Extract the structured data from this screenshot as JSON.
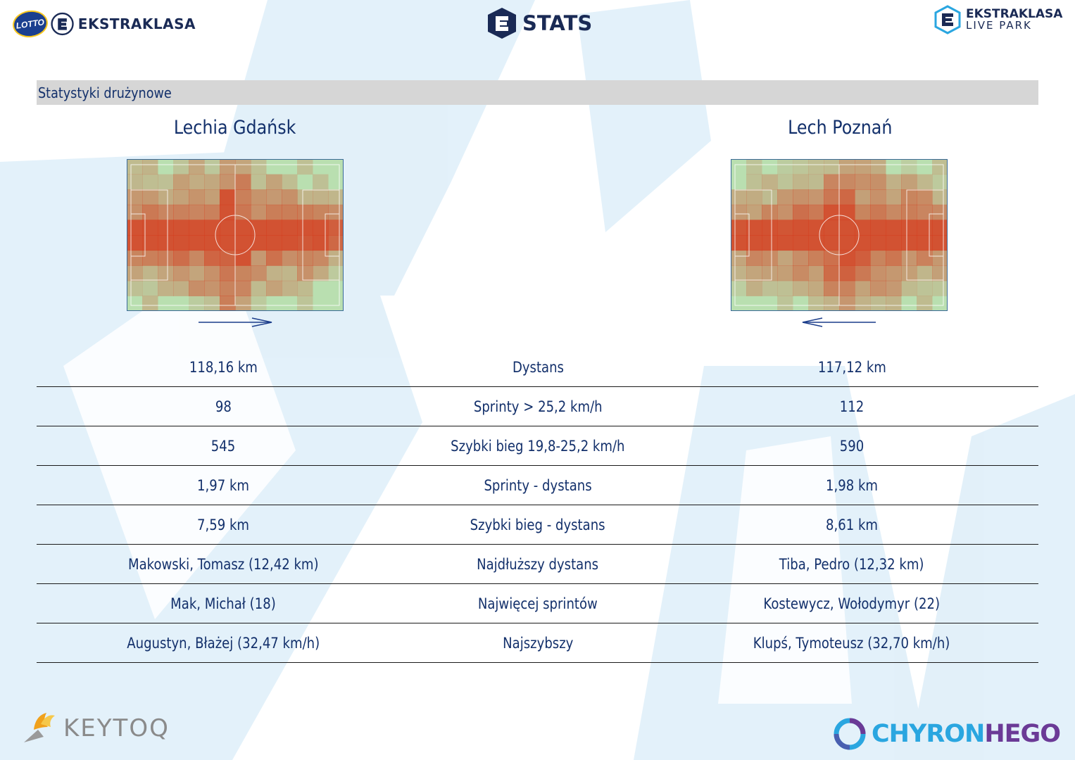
{
  "header": {
    "left_logo": {
      "lotto": "LOTTO",
      "brand": "EKSTRAKLASA"
    },
    "center_logo": {
      "label": "STATS"
    },
    "right_logo": {
      "line1": "EKSTRAKLASA",
      "line2": "LIVE PARK"
    }
  },
  "section": {
    "title": "Statystyki drużynowe"
  },
  "teams": {
    "home": {
      "name": "Lechia Gdańsk",
      "attack_direction": "right"
    },
    "away": {
      "name": "Lech Poznań",
      "attack_direction": "left"
    }
  },
  "stats": [
    {
      "label": "Dystans",
      "home": "118,16 km",
      "away": "117,12 km"
    },
    {
      "label": "Sprinty > 25,2 km/h",
      "home": "98",
      "away": "112"
    },
    {
      "label": "Szybki bieg 19,8-25,2 km/h",
      "home": "545",
      "away": "590"
    },
    {
      "label": "Sprinty - dystans",
      "home": "1,97 km",
      "away": "1,98 km"
    },
    {
      "label": "Szybki bieg - dystans",
      "home": "7,59 km",
      "away": "8,61 km"
    },
    {
      "label": "Najdłuższy dystans",
      "home": "Makowski, Tomasz (12,42 km)",
      "away": "Tiba, Pedro (12,32 km)"
    },
    {
      "label": "Najwięcej sprintów",
      "home": "Mak, Michał (18)",
      "away": "Kostewycz, Wołodymyr (22)"
    },
    {
      "label": "Najszybszy",
      "home": "Augustyn, Błażej (32,47 km/h)",
      "away": "Klupś, Tymoteusz (32,70 km/h)"
    }
  ],
  "footer": {
    "left_logo": "KEYTOQ",
    "right_logo_part1": "CHYRON",
    "right_logo_part2": "HEGO"
  },
  "colors": {
    "text": "#13306b",
    "section_bar": "#d6d6d6",
    "pitch_base": "#b9dfb0",
    "heat": "#d63a1c",
    "deco": "#d6ebf8",
    "chyron_blue": "#2aa6e0",
    "chyron_purple": "#6b3a96"
  }
}
